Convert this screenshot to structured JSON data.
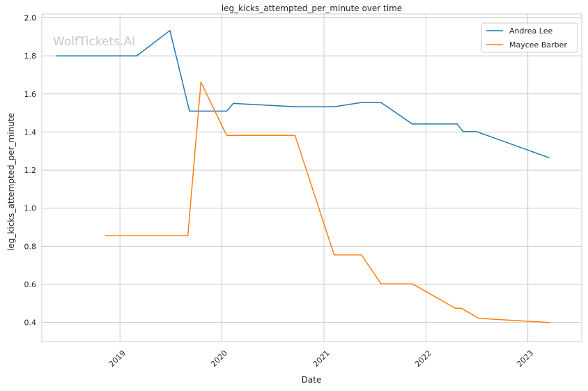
{
  "chart_data": {
    "type": "line",
    "title": "leg_kicks_attempted_per_minute over time",
    "xlabel": "Date",
    "ylabel": "leg_kicks_attempted_per_minute",
    "watermark": "WolfTickets.AI",
    "x_ticks": [
      "2019",
      "2020",
      "2021",
      "2022",
      "2023"
    ],
    "y_ticks": [
      "0.4",
      "0.6",
      "0.8",
      "1.0",
      "1.2",
      "1.4",
      "1.6",
      "1.8",
      "2.0"
    ],
    "xlim": [
      "2018-03-27",
      "2023-07-13"
    ],
    "ylim": [
      0.3,
      2.02
    ],
    "grid": true,
    "legend_position": "top-right",
    "series": [
      {
        "name": "Andrea Lee",
        "color": "#1f77b4",
        "points": [
          {
            "x": "2018-05-19",
            "y": 1.8
          },
          {
            "x": "2019-03-02",
            "y": 1.8
          },
          {
            "x": "2019-06-29",
            "y": 1.933
          },
          {
            "x": "2019-09-07",
            "y": 1.51
          },
          {
            "x": "2020-01-18",
            "y": 1.51
          },
          {
            "x": "2020-02-11",
            "y": 1.55
          },
          {
            "x": "2020-09-19",
            "y": 1.533
          },
          {
            "x": "2021-02-06",
            "y": 1.533
          },
          {
            "x": "2021-05-15",
            "y": 1.555
          },
          {
            "x": "2021-07-24",
            "y": 1.555
          },
          {
            "x": "2021-11-13",
            "y": 1.442
          },
          {
            "x": "2022-04-23",
            "y": 1.442
          },
          {
            "x": "2022-05-14",
            "y": 1.402
          },
          {
            "x": "2022-07-02",
            "y": 1.402
          },
          {
            "x": "2023-03-18",
            "y": 1.265
          }
        ]
      },
      {
        "name": "Maycee Barber",
        "color": "#ff7f0e",
        "points": [
          {
            "x": "2018-11-10",
            "y": 0.855
          },
          {
            "x": "2019-09-01",
            "y": 0.855
          },
          {
            "x": "2019-10-18",
            "y": 1.662
          },
          {
            "x": "2020-01-18",
            "y": 1.382
          },
          {
            "x": "2020-09-19",
            "y": 1.382
          },
          {
            "x": "2021-02-06",
            "y": 0.755
          },
          {
            "x": "2021-05-15",
            "y": 0.755
          },
          {
            "x": "2021-07-24",
            "y": 0.603
          },
          {
            "x": "2021-11-13",
            "y": 0.603
          },
          {
            "x": "2022-04-16",
            "y": 0.475
          },
          {
            "x": "2022-05-07",
            "y": 0.475
          },
          {
            "x": "2022-07-09",
            "y": 0.422
          },
          {
            "x": "2023-03-18",
            "y": 0.4
          }
        ]
      }
    ]
  }
}
